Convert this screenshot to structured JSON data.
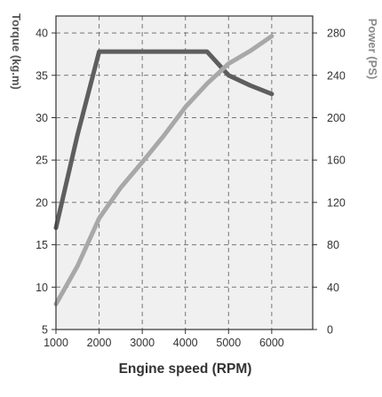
{
  "chart_data": {
    "type": "line",
    "xlabel": "Engine speed (RPM)",
    "ylabel_left": "Torque (kg.m)",
    "ylabel_right": "Power (PS)",
    "xlim": [
      1000,
      6950
    ],
    "ylim_left": [
      5,
      42
    ],
    "ylim_right": [
      0,
      296
    ],
    "x_ticks": [
      "1000",
      "2000",
      "3000",
      "4000",
      "5000",
      "6000"
    ],
    "y_left_ticks": [
      "5",
      "10",
      "15",
      "20",
      "25",
      "30",
      "35",
      "40"
    ],
    "y_right_ticks": [
      "0",
      "40",
      "80",
      "120",
      "160",
      "200",
      "240",
      "280"
    ],
    "grid": true,
    "colors": {
      "torque": "#5e5e5e",
      "power": "#a8a8a8",
      "plot_background": "#f0f0f0",
      "grid": "#777777",
      "axis_text": "#333333",
      "right_axis_label": "#8a8a8a"
    },
    "series": [
      {
        "axis": "left",
        "values": [
          [
            1000,
            17.0
          ],
          [
            1500,
            28.0
          ],
          [
            2000,
            37.8
          ],
          [
            2500,
            37.8
          ],
          [
            3000,
            37.8
          ],
          [
            3500,
            37.8
          ],
          [
            4000,
            37.8
          ],
          [
            4500,
            37.8
          ],
          [
            5000,
            35.0
          ],
          [
            5500,
            33.8
          ],
          [
            6000,
            32.8
          ]
        ]
      },
      {
        "axis": "right",
        "values": [
          [
            1000,
            24
          ],
          [
            1500,
            60
          ],
          [
            2000,
            105
          ],
          [
            2500,
            134
          ],
          [
            3000,
            158
          ],
          [
            3500,
            183
          ],
          [
            4000,
            210
          ],
          [
            4500,
            232
          ],
          [
            5000,
            251
          ],
          [
            5500,
            263
          ],
          [
            6000,
            277
          ]
        ]
      }
    ]
  }
}
